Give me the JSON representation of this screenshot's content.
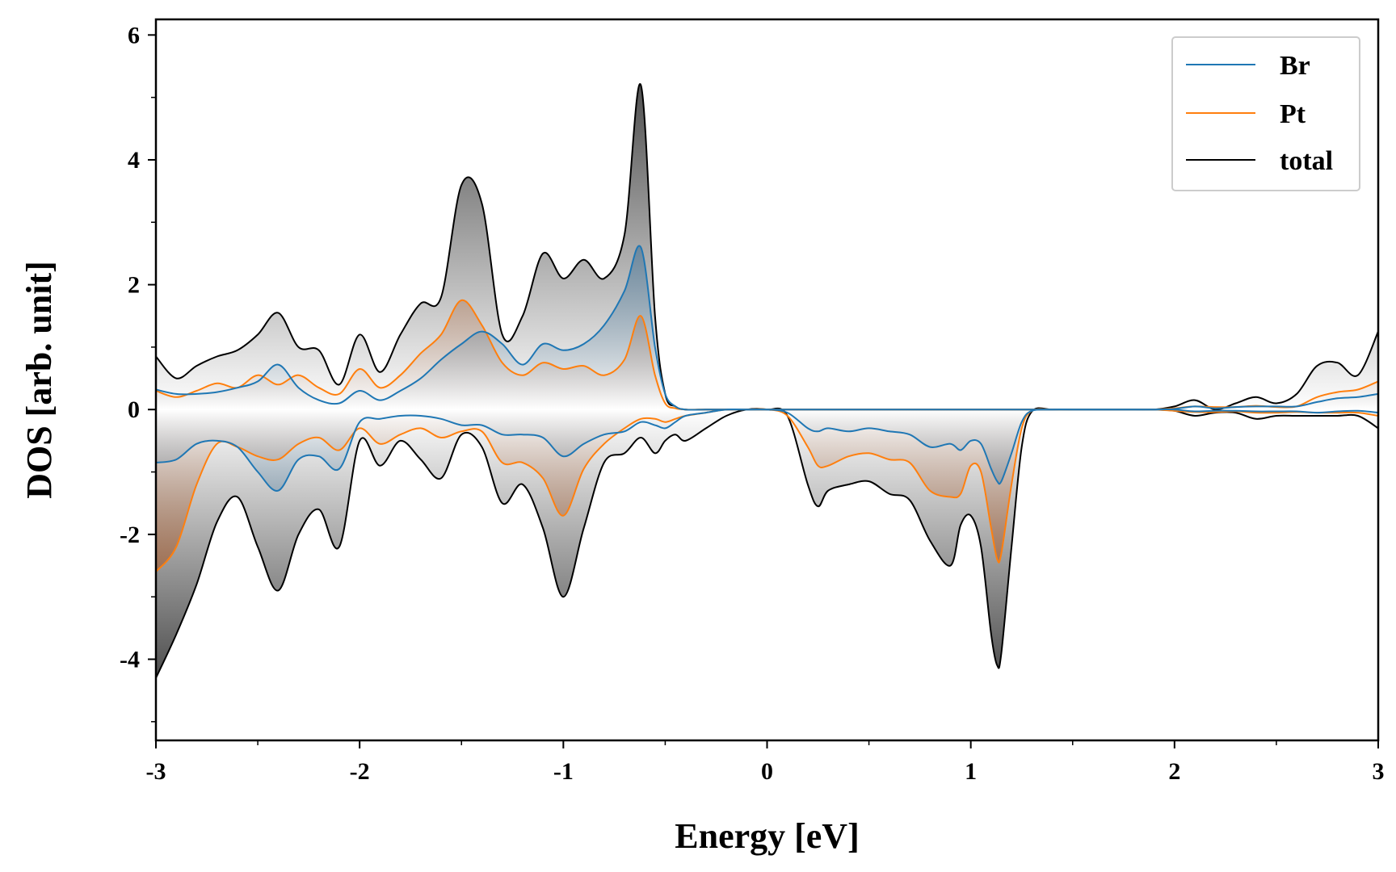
{
  "chart_data": {
    "type": "line",
    "title": "",
    "xlabel": "Energy [eV]",
    "ylabel": "DOS [arb. unit]",
    "xlim": [
      -3,
      3
    ],
    "ylim": [
      -5.3,
      6.25
    ],
    "xticks": [
      -3,
      -2,
      -1,
      0,
      1,
      2,
      3
    ],
    "xtick_labels": [
      "-3",
      "-2",
      "-1",
      "0",
      "1",
      "2",
      "3"
    ],
    "yticks": [
      -4,
      -2,
      0,
      2,
      4,
      6
    ],
    "ytick_labels": [
      "-4",
      "-2",
      "0",
      "2",
      "4",
      "6"
    ],
    "grid": false,
    "legend_position": "top-right",
    "colors": {
      "Br": "#1f77b4",
      "Pt": "#ff7f0e",
      "total": "#000000",
      "Br_fill": "#1f5f8f",
      "Pt_fill": "#a8501a",
      "total_fill": "#404040"
    },
    "x": [
      -3.0,
      -2.9,
      -2.8,
      -2.7,
      -2.6,
      -2.5,
      -2.4,
      -2.3,
      -2.2,
      -2.1,
      -2.0,
      -1.9,
      -1.8,
      -1.7,
      -1.6,
      -1.5,
      -1.4,
      -1.3,
      -1.2,
      -1.1,
      -1.0,
      -0.9,
      -0.8,
      -0.7,
      -0.62,
      -0.55,
      -0.5,
      -0.45,
      -0.4,
      -0.3,
      -0.2,
      -0.1,
      0.0,
      0.1,
      0.2,
      0.25,
      0.3,
      0.4,
      0.5,
      0.6,
      0.7,
      0.8,
      0.9,
      0.95,
      1.0,
      1.05,
      1.1,
      1.13,
      1.15,
      1.2,
      1.25,
      1.3,
      1.4,
      1.5,
      1.6,
      1.7,
      1.8,
      1.9,
      2.0,
      2.1,
      2.2,
      2.3,
      2.4,
      2.5,
      2.6,
      2.7,
      2.8,
      2.9,
      3.0
    ],
    "series": [
      {
        "name": "Br",
        "up": [
          0.32,
          0.25,
          0.25,
          0.28,
          0.35,
          0.45,
          0.72,
          0.35,
          0.15,
          0.1,
          0.3,
          0.15,
          0.3,
          0.5,
          0.8,
          1.05,
          1.25,
          1.05,
          0.72,
          1.05,
          0.95,
          1.05,
          1.35,
          1.9,
          2.6,
          1.0,
          0.25,
          0.05,
          0.0,
          0.0,
          0.0,
          0.0,
          0.0,
          0.0,
          0.0,
          0.0,
          0.0,
          0.0,
          0.0,
          0.0,
          0.0,
          0.0,
          0.0,
          0.0,
          0.0,
          0.0,
          0.0,
          0.0,
          0.0,
          0.0,
          0.0,
          0.0,
          0.0,
          0.0,
          0.0,
          0.0,
          0.0,
          0.0,
          0.01,
          0.05,
          0.02,
          0.04,
          0.05,
          0.05,
          0.05,
          0.12,
          0.18,
          0.2,
          0.25
        ],
        "down": [
          -0.85,
          -0.8,
          -0.55,
          -0.5,
          -0.6,
          -1.0,
          -1.3,
          -0.8,
          -0.75,
          -0.95,
          -0.2,
          -0.15,
          -0.1,
          -0.1,
          -0.15,
          -0.25,
          -0.25,
          -0.4,
          -0.4,
          -0.45,
          -0.75,
          -0.55,
          -0.4,
          -0.35,
          -0.2,
          -0.25,
          -0.3,
          -0.2,
          -0.1,
          -0.05,
          0.0,
          0.0,
          0.0,
          -0.05,
          -0.3,
          -0.35,
          -0.3,
          -0.35,
          -0.3,
          -0.35,
          -0.4,
          -0.6,
          -0.55,
          -0.65,
          -0.5,
          -0.55,
          -0.95,
          -1.15,
          -1.15,
          -0.7,
          -0.2,
          -0.02,
          0.0,
          0.0,
          0.0,
          0.0,
          0.0,
          0.0,
          0.0,
          -0.03,
          -0.02,
          -0.02,
          -0.03,
          -0.03,
          -0.03,
          -0.05,
          -0.03,
          -0.02,
          -0.05
        ]
      },
      {
        "name": "Pt",
        "up": [
          0.3,
          0.2,
          0.3,
          0.42,
          0.35,
          0.55,
          0.4,
          0.55,
          0.35,
          0.25,
          0.65,
          0.35,
          0.55,
          0.9,
          1.2,
          1.75,
          1.35,
          0.75,
          0.55,
          0.75,
          0.65,
          0.7,
          0.55,
          0.8,
          1.5,
          0.55,
          0.1,
          0.02,
          0.0,
          0.0,
          0.0,
          0.0,
          0.0,
          0.0,
          0.0,
          0.0,
          0.0,
          0.0,
          0.0,
          0.0,
          0.0,
          0.0,
          0.0,
          0.0,
          0.0,
          0.0,
          0.0,
          0.0,
          0.0,
          0.0,
          0.0,
          0.0,
          0.0,
          0.0,
          0.0,
          0.0,
          0.0,
          0.0,
          0.02,
          0.05,
          0.04,
          0.04,
          0.06,
          0.04,
          0.05,
          0.2,
          0.28,
          0.32,
          0.45
        ],
        "down": [
          -2.6,
          -2.2,
          -1.2,
          -0.55,
          -0.6,
          -0.75,
          -0.8,
          -0.55,
          -0.45,
          -0.65,
          -0.3,
          -0.55,
          -0.4,
          -0.3,
          -0.45,
          -0.35,
          -0.35,
          -0.85,
          -0.85,
          -1.1,
          -1.7,
          -0.95,
          -0.55,
          -0.3,
          -0.15,
          -0.15,
          -0.2,
          -0.15,
          -0.1,
          -0.05,
          0.0,
          0.0,
          0.0,
          -0.1,
          -0.6,
          -0.9,
          -0.9,
          -0.75,
          -0.7,
          -0.8,
          -0.85,
          -1.3,
          -1.4,
          -1.35,
          -0.9,
          -1.0,
          -1.9,
          -2.4,
          -2.3,
          -1.2,
          -0.3,
          -0.02,
          0.0,
          0.0,
          0.0,
          0.0,
          0.0,
          0.0,
          -0.02,
          -0.04,
          -0.04,
          -0.03,
          -0.05,
          -0.05,
          -0.04,
          -0.05,
          -0.05,
          -0.05,
          -0.1
        ]
      },
      {
        "name": "total",
        "up": [
          0.85,
          0.5,
          0.7,
          0.85,
          0.95,
          1.2,
          1.55,
          1.0,
          0.95,
          0.4,
          1.2,
          0.6,
          1.2,
          1.7,
          1.8,
          3.6,
          3.3,
          1.2,
          1.5,
          2.5,
          2.1,
          2.4,
          2.1,
          2.8,
          5.2,
          1.5,
          0.25,
          0.05,
          0.0,
          0.0,
          0.0,
          0.0,
          0.0,
          0.0,
          0.0,
          0.0,
          0.0,
          0.0,
          0.0,
          0.0,
          0.0,
          0.0,
          0.0,
          0.0,
          0.0,
          0.0,
          0.0,
          0.0,
          0.0,
          0.0,
          0.0,
          0.0,
          0.0,
          0.0,
          0.0,
          0.0,
          0.0,
          0.0,
          0.05,
          0.15,
          0.0,
          0.1,
          0.2,
          0.1,
          0.25,
          0.7,
          0.75,
          0.55,
          1.25
        ],
        "down": [
          -4.3,
          -3.6,
          -2.8,
          -1.8,
          -1.4,
          -2.2,
          -2.9,
          -2.0,
          -1.6,
          -2.2,
          -0.5,
          -0.9,
          -0.5,
          -0.8,
          -1.1,
          -0.4,
          -0.6,
          -1.5,
          -1.2,
          -1.9,
          -3.0,
          -1.9,
          -0.85,
          -0.7,
          -0.45,
          -0.7,
          -0.5,
          -0.4,
          -0.5,
          -0.3,
          -0.1,
          0.0,
          0.0,
          -0.1,
          -1.2,
          -1.55,
          -1.3,
          -1.2,
          -1.15,
          -1.35,
          -1.45,
          -2.1,
          -2.5,
          -1.85,
          -1.7,
          -2.2,
          -3.6,
          -4.1,
          -3.9,
          -2.2,
          -0.6,
          -0.03,
          0.0,
          0.0,
          0.0,
          0.0,
          0.0,
          0.0,
          -0.02,
          -0.1,
          -0.05,
          -0.05,
          -0.15,
          -0.1,
          -0.1,
          -0.1,
          -0.1,
          -0.1,
          -0.3
        ]
      }
    ],
    "legend": [
      "Br",
      "Pt",
      "total"
    ]
  }
}
